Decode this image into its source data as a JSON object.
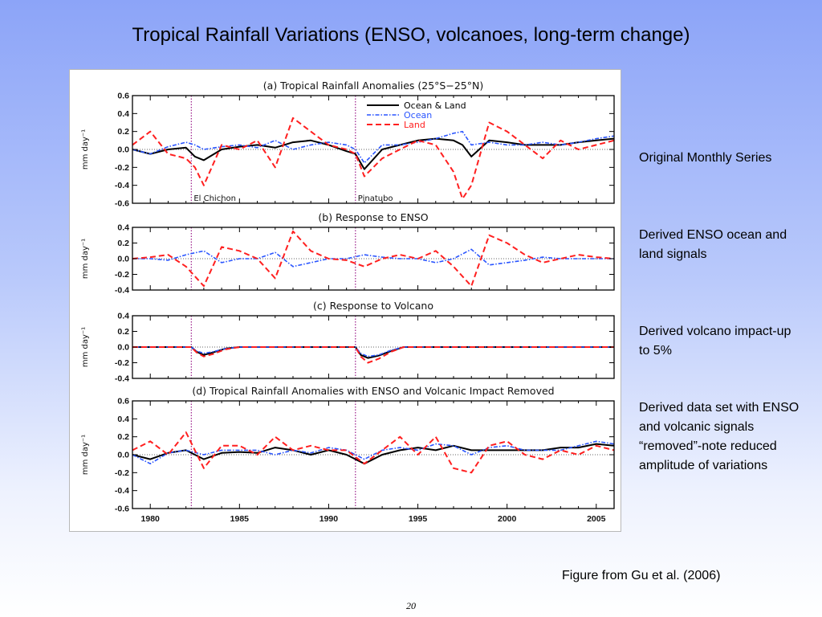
{
  "slide": {
    "title": "Tropical Rainfall Variations (ENSO, volcanoes, long-term change)",
    "notes": [
      "Original Monthly Series",
      "Derived ENSO ocean and land signals",
      "Derived volcano impact-up to 5%",
      "Derived data set with ENSO and volcanic signals “removed”-note reduced amplitude of variations"
    ],
    "caption": "Figure from Gu et al. (2006)",
    "page_number": "20"
  },
  "chart_data": [
    {
      "type": "line",
      "title": "(a) Tropical Rainfall Anomalies (25°S−25°N)",
      "ylabel": "mm day⁻¹",
      "ylim": [
        -0.6,
        0.6
      ],
      "yticks": [
        -0.6,
        -0.4,
        -0.2,
        0.0,
        0.2,
        0.4,
        0.6
      ],
      "xlim": [
        1979,
        2006
      ],
      "events": [
        {
          "label": "El Chichon",
          "x": 1982.3
        },
        {
          "label": "Pinatubo",
          "x": 1991.5
        }
      ],
      "series": [
        {
          "name": "Ocean & Land",
          "color": "#000000",
          "style": "solid",
          "x": [
            1979,
            1980,
            1981,
            1982,
            1982.5,
            1983,
            1984,
            1985,
            1986,
            1987,
            1988,
            1989,
            1990,
            1991,
            1991.5,
            1992,
            1993,
            1994,
            1995,
            1996,
            1997,
            1997.5,
            1998,
            1999,
            2000,
            2001,
            2002,
            2003,
            2004,
            2005,
            2006
          ],
          "y": [
            0.0,
            -0.05,
            0.0,
            0.02,
            -0.08,
            -0.12,
            0.0,
            0.03,
            0.05,
            0.02,
            0.08,
            0.1,
            0.05,
            -0.02,
            -0.05,
            -0.22,
            0.0,
            0.05,
            0.1,
            0.12,
            0.1,
            0.05,
            -0.08,
            0.1,
            0.08,
            0.05,
            0.05,
            0.05,
            0.08,
            0.1,
            0.12
          ]
        },
        {
          "name": "Ocean",
          "color": "#2a55ff",
          "style": "dash-dot",
          "x": [
            1979,
            1980,
            1981,
            1982,
            1982.5,
            1983,
            1984,
            1985,
            1986,
            1987,
            1988,
            1989,
            1990,
            1991,
            1991.5,
            1992,
            1993,
            1994,
            1995,
            1996,
            1997,
            1997.5,
            1998,
            1999,
            2000,
            2001,
            2002,
            2003,
            2004,
            2005,
            2006
          ],
          "y": [
            0.0,
            -0.05,
            0.03,
            0.08,
            0.05,
            0.0,
            0.03,
            0.05,
            0.02,
            0.1,
            0.0,
            0.05,
            0.08,
            0.05,
            0.0,
            -0.15,
            0.05,
            0.05,
            0.08,
            0.12,
            0.18,
            0.2,
            0.05,
            0.08,
            0.05,
            0.05,
            0.08,
            0.05,
            0.08,
            0.12,
            0.15
          ]
        },
        {
          "name": "Land",
          "color": "#ff1f1f",
          "style": "dashed",
          "x": [
            1979,
            1980,
            1981,
            1982,
            1982.5,
            1983,
            1984,
            1985,
            1986,
            1987,
            1988,
            1989,
            1990,
            1991,
            1991.5,
            1992,
            1993,
            1994,
            1995,
            1996,
            1997,
            1997.5,
            1998,
            1999,
            2000,
            2001,
            2002,
            2003,
            2004,
            2005,
            2006
          ],
          "y": [
            0.05,
            0.2,
            -0.05,
            -0.1,
            -0.2,
            -0.4,
            0.05,
            0.0,
            0.1,
            -0.2,
            0.35,
            0.2,
            0.05,
            0.0,
            -0.05,
            -0.3,
            -0.1,
            0.0,
            0.1,
            0.05,
            -0.25,
            -0.55,
            -0.4,
            0.3,
            0.2,
            0.05,
            -0.1,
            0.1,
            0.0,
            0.05,
            0.1
          ]
        }
      ],
      "legend": "top-right"
    },
    {
      "type": "line",
      "title": "(b) Response to ENSO",
      "ylabel": "mm day⁻¹",
      "ylim": [
        -0.4,
        0.4
      ],
      "yticks": [
        -0.4,
        -0.2,
        0.0,
        0.2,
        0.4
      ],
      "xlim": [
        1979,
        2006
      ],
      "series": [
        {
          "name": "Ocean",
          "color": "#2a55ff",
          "style": "dash-dot",
          "x": [
            1979,
            1980,
            1981,
            1982,
            1983,
            1984,
            1985,
            1986,
            1987,
            1988,
            1989,
            1990,
            1991,
            1992,
            1993,
            1994,
            1995,
            1996,
            1997,
            1998,
            1999,
            2000,
            2001,
            2002,
            2003,
            2004,
            2005,
            2006
          ],
          "y": [
            0.0,
            0.0,
            -0.02,
            0.05,
            0.1,
            -0.05,
            0.0,
            0.0,
            0.08,
            -0.1,
            -0.05,
            0.0,
            0.0,
            0.05,
            0.02,
            0.0,
            0.0,
            -0.05,
            0.0,
            0.12,
            -0.08,
            -0.05,
            -0.02,
            0.02,
            0.0,
            0.0,
            0.0,
            0.0
          ]
        },
        {
          "name": "Land",
          "color": "#ff1f1f",
          "style": "dashed",
          "x": [
            1979,
            1980,
            1981,
            1982,
            1983,
            1984,
            1985,
            1986,
            1987,
            1988,
            1989,
            1990,
            1991,
            1992,
            1993,
            1994,
            1995,
            1996,
            1997,
            1998,
            1999,
            2000,
            2001,
            2002,
            2003,
            2004,
            2005,
            2006
          ],
          "y": [
            0.0,
            0.02,
            0.05,
            -0.1,
            -0.35,
            0.15,
            0.1,
            0.0,
            -0.25,
            0.35,
            0.1,
            0.0,
            -0.02,
            -0.1,
            0.0,
            0.05,
            0.0,
            0.1,
            -0.1,
            -0.35,
            0.3,
            0.2,
            0.05,
            -0.05,
            0.0,
            0.05,
            0.02,
            0.0
          ]
        }
      ]
    },
    {
      "type": "line",
      "title": "(c) Response to Volcano",
      "ylabel": "mm day⁻¹",
      "ylim": [
        -0.4,
        0.4
      ],
      "yticks": [
        -0.4,
        -0.2,
        0.0,
        0.2,
        0.4
      ],
      "xlim": [
        1979,
        2006
      ],
      "series": [
        {
          "name": "Ocean & Land",
          "color": "#000000",
          "style": "solid",
          "x": [
            1979,
            1982.3,
            1982.6,
            1983.0,
            1983.5,
            1984.2,
            1985,
            1991.5,
            1991.8,
            1992.2,
            1992.8,
            1993.5,
            1994.2,
            2006
          ],
          "y": [
            0.0,
            0.0,
            -0.06,
            -0.1,
            -0.07,
            -0.02,
            0.0,
            0.0,
            -0.1,
            -0.14,
            -0.11,
            -0.05,
            0.0,
            0.0
          ]
        },
        {
          "name": "Ocean",
          "color": "#2a55ff",
          "style": "dash-dot",
          "x": [
            1979,
            1982.3,
            1982.6,
            1983.0,
            1983.5,
            1984.2,
            1985,
            1991.5,
            1991.8,
            1992.2,
            1992.8,
            1993.5,
            1994.2,
            2006
          ],
          "y": [
            0.0,
            0.0,
            -0.05,
            -0.08,
            -0.06,
            -0.02,
            0.0,
            0.0,
            -0.08,
            -0.12,
            -0.1,
            -0.04,
            0.0,
            0.0
          ]
        },
        {
          "name": "Land",
          "color": "#ff1f1f",
          "style": "dashed",
          "x": [
            1979,
            1982.3,
            1982.6,
            1983.0,
            1983.5,
            1984.2,
            1985,
            1991.5,
            1991.8,
            1992.2,
            1992.8,
            1993.5,
            1994.2,
            2006
          ],
          "y": [
            0.0,
            0.0,
            -0.07,
            -0.12,
            -0.09,
            -0.03,
            0.0,
            0.0,
            -0.12,
            -0.2,
            -0.15,
            -0.06,
            0.0,
            0.0
          ]
        }
      ]
    },
    {
      "type": "line",
      "title": "(d) Tropical Rainfall Anomalies with ENSO and Volcanic Impact Removed",
      "ylabel": "mm day⁻¹",
      "ylim": [
        -0.6,
        0.6
      ],
      "yticks": [
        -0.6,
        -0.4,
        -0.2,
        0.0,
        0.2,
        0.4,
        0.6
      ],
      "xlim": [
        1979,
        2006
      ],
      "xticks": [
        1980,
        1985,
        1990,
        1995,
        2000,
        2005
      ],
      "series": [
        {
          "name": "Ocean & Land",
          "color": "#000000",
          "style": "solid",
          "x": [
            1979,
            1980,
            1981,
            1982,
            1983,
            1984,
            1985,
            1986,
            1987,
            1988,
            1989,
            1990,
            1991,
            1992,
            1993,
            1994,
            1995,
            1996,
            1997,
            1998,
            1999,
            2000,
            2001,
            2002,
            2003,
            2004,
            2005,
            2006
          ],
          "y": [
            0.0,
            -0.05,
            0.02,
            0.05,
            -0.05,
            0.02,
            0.03,
            0.02,
            0.08,
            0.05,
            0.0,
            0.05,
            0.0,
            -0.1,
            0.0,
            0.05,
            0.08,
            0.05,
            0.1,
            0.05,
            0.05,
            0.05,
            0.05,
            0.05,
            0.08,
            0.08,
            0.12,
            0.1
          ]
        },
        {
          "name": "Ocean",
          "color": "#2a55ff",
          "style": "dash-dot",
          "x": [
            1979,
            1980,
            1981,
            1982,
            1983,
            1984,
            1985,
            1986,
            1987,
            1988,
            1989,
            1990,
            1991,
            1992,
            1993,
            1994,
            1995,
            1996,
            1997,
            1998,
            1999,
            2000,
            2001,
            2002,
            2003,
            2004,
            2005,
            2006
          ],
          "y": [
            0.0,
            -0.1,
            0.02,
            0.05,
            0.0,
            0.05,
            0.05,
            0.05,
            0.0,
            0.05,
            0.02,
            0.08,
            0.05,
            -0.05,
            0.05,
            0.08,
            0.05,
            0.12,
            0.1,
            0.0,
            0.08,
            0.1,
            0.05,
            0.05,
            0.05,
            0.1,
            0.15,
            0.12
          ]
        },
        {
          "name": "Land",
          "color": "#ff1f1f",
          "style": "dashed",
          "x": [
            1979,
            1980,
            1981,
            1982,
            1983,
            1984,
            1985,
            1986,
            1987,
            1988,
            1989,
            1990,
            1991,
            1992,
            1993,
            1994,
            1995,
            1996,
            1997,
            1998,
            1999,
            2000,
            2001,
            2002,
            2003,
            2004,
            2005,
            2006
          ],
          "y": [
            0.05,
            0.15,
            0.0,
            0.25,
            -0.15,
            0.1,
            0.1,
            0.0,
            0.2,
            0.05,
            0.1,
            0.05,
            0.05,
            -0.1,
            0.05,
            0.2,
            0.0,
            0.2,
            -0.15,
            -0.2,
            0.1,
            0.15,
            0.0,
            -0.05,
            0.05,
            0.0,
            0.1,
            0.05
          ]
        }
      ]
    }
  ]
}
